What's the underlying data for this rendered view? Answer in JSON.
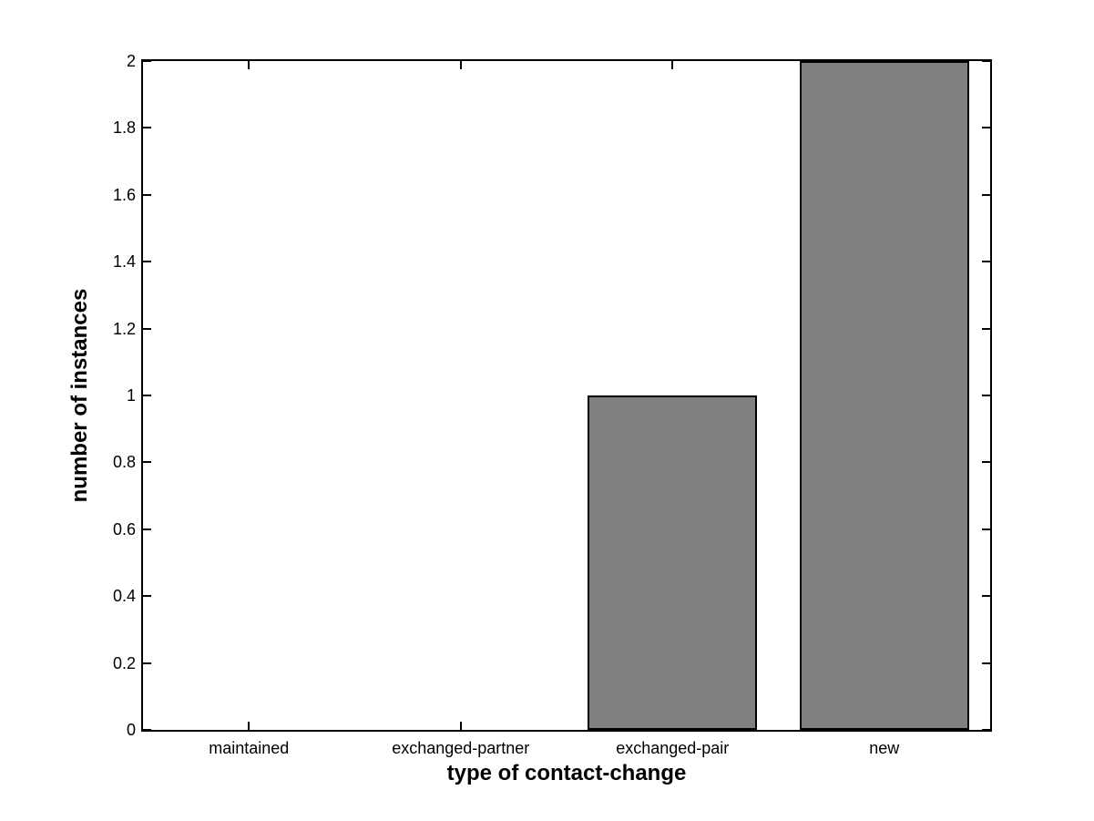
{
  "figure": {
    "background_color": "#ffffff",
    "axis_color": "#000000"
  },
  "chart_data": {
    "type": "bar",
    "title": "",
    "xlabel": "type of contact-change",
    "ylabel": "number of instances",
    "categories": [
      "maintained",
      "exchanged-partner",
      "exchanged-pair",
      "new"
    ],
    "values": [
      0,
      0,
      1,
      2
    ],
    "ylim": [
      0,
      2
    ],
    "yticks": [
      0,
      0.2,
      0.4,
      0.6,
      0.8,
      1,
      1.2,
      1.4,
      1.6,
      1.8,
      2
    ],
    "ytick_labels": [
      "0",
      "0.2",
      "0.4",
      "0.6",
      "0.8",
      "1",
      "1.2",
      "1.4",
      "1.6",
      "1.8",
      "2"
    ],
    "bar_color": "#808080",
    "bar_edge_color": "#000000",
    "bar_width_fraction": 0.8,
    "grid": false,
    "legend_position": "none",
    "box": true,
    "tick_direction": "in"
  }
}
